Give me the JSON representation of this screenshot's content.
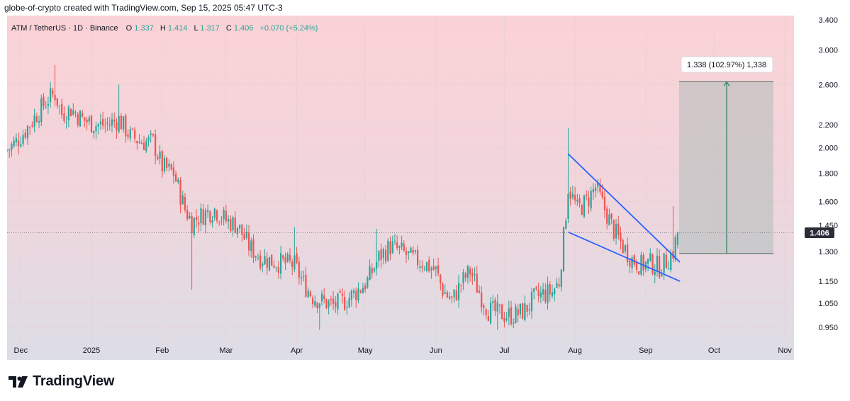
{
  "header": {
    "text": "globe-of-crypto created with TradingView.com, Sep 15, 2025 05:47 UTC-3"
  },
  "legend": {
    "symbol": "ATM / TetherUS · 1D · Binance",
    "o_label": "O",
    "o": "1.337",
    "h_label": "H",
    "h": "1.414",
    "l_label": "L",
    "l": "1.317",
    "c_label": "C",
    "c": "1.406",
    "change": "+0.070 (+5.24%)"
  },
  "measure": {
    "label": "1.338 (102.97%) 1,338",
    "from": 1.29,
    "to": 2.63
  },
  "price_tag": {
    "text": "1.406",
    "value": 1.406
  },
  "footer": {
    "brand": "TradingView"
  },
  "colors": {
    "up": "#26a69a",
    "down": "#ef5350",
    "trendline": "#2962ff",
    "tag": "#2a2e39"
  },
  "chart_data": {
    "type": "candlestick",
    "y_scale": "log",
    "ylim": [
      0.9,
      3.4
    ],
    "yticks": [
      "0.950",
      "1.050",
      "1.150",
      "1.300",
      "1.450",
      "1.600",
      "1.800",
      "2.000",
      "2.200",
      "2.600",
      "3.000",
      "3.400"
    ],
    "x_axis": {
      "start": "2024-11-25",
      "end": "2025-11-05"
    },
    "xticks": [
      {
        "label": "Dec",
        "date": "2024-12-01"
      },
      {
        "label": "2025",
        "date": "2025-01-01"
      },
      {
        "label": "Feb",
        "date": "2025-02-01"
      },
      {
        "label": "Mar",
        "date": "2025-03-01"
      },
      {
        "label": "Apr",
        "date": "2025-04-01"
      },
      {
        "label": "May",
        "date": "2025-05-01"
      },
      {
        "label": "Jun",
        "date": "2025-06-01"
      },
      {
        "label": "Jul",
        "date": "2025-07-01"
      },
      {
        "label": "Aug",
        "date": "2025-08-01"
      },
      {
        "label": "Sep",
        "date": "2025-09-01"
      },
      {
        "label": "Oct",
        "date": "2025-10-01"
      },
      {
        "label": "Nov",
        "date": "2025-11-01"
      }
    ],
    "close_path": [
      [
        "2024-11-25",
        1.98
      ],
      [
        "2024-11-29",
        2.05
      ],
      [
        "2024-12-03",
        2.15
      ],
      [
        "2024-12-08",
        2.3
      ],
      [
        "2024-12-13",
        2.45
      ],
      [
        "2024-12-16",
        2.5
      ],
      [
        "2024-12-19",
        2.3
      ],
      [
        "2024-12-23",
        2.35
      ],
      [
        "2024-12-28",
        2.25
      ],
      [
        "2025-01-03",
        2.2
      ],
      [
        "2025-01-08",
        2.2
      ],
      [
        "2025-01-13",
        2.25
      ],
      [
        "2025-01-18",
        2.1
      ],
      [
        "2025-01-23",
        2.05
      ],
      [
        "2025-01-28",
        2.05
      ],
      [
        "2025-02-01",
        1.85
      ],
      [
        "2025-02-06",
        1.8
      ],
      [
        "2025-02-11",
        1.55
      ],
      [
        "2025-02-14",
        1.47
      ],
      [
        "2025-02-19",
        1.52
      ],
      [
        "2025-02-24",
        1.55
      ],
      [
        "2025-03-01",
        1.48
      ],
      [
        "2025-03-06",
        1.45
      ],
      [
        "2025-03-11",
        1.33
      ],
      [
        "2025-03-16",
        1.27
      ],
      [
        "2025-03-21",
        1.25
      ],
      [
        "2025-03-26",
        1.24
      ],
      [
        "2025-03-31",
        1.23
      ],
      [
        "2025-04-04",
        1.14
      ],
      [
        "2025-04-08",
        1.08
      ],
      [
        "2025-04-12",
        1.06
      ],
      [
        "2025-04-17",
        1.04
      ],
      [
        "2025-04-22",
        1.06
      ],
      [
        "2025-04-27",
        1.1
      ],
      [
        "2025-05-02",
        1.15
      ],
      [
        "2025-05-07",
        1.27
      ],
      [
        "2025-05-12",
        1.33
      ],
      [
        "2025-05-17",
        1.3
      ],
      [
        "2025-05-22",
        1.26
      ],
      [
        "2025-05-27",
        1.24
      ],
      [
        "2025-06-01",
        1.2
      ],
      [
        "2025-06-04",
        1.11
      ],
      [
        "2025-06-08",
        1.06
      ],
      [
        "2025-06-12",
        1.14
      ],
      [
        "2025-06-16",
        1.2
      ],
      [
        "2025-06-20",
        1.1
      ],
      [
        "2025-06-24",
        1.02
      ],
      [
        "2025-06-28",
        1.01
      ],
      [
        "2025-07-02",
        1.0
      ],
      [
        "2025-07-06",
        1.0
      ],
      [
        "2025-07-10",
        1.02
      ],
      [
        "2025-07-14",
        1.07
      ],
      [
        "2025-07-18",
        1.09
      ],
      [
        "2025-07-22",
        1.1
      ],
      [
        "2025-07-25",
        1.15
      ],
      [
        "2025-07-27",
        1.38
      ],
      [
        "2025-07-29",
        1.7
      ],
      [
        "2025-08-02",
        1.55
      ],
      [
        "2025-08-06",
        1.6
      ],
      [
        "2025-08-10",
        1.7
      ],
      [
        "2025-08-14",
        1.55
      ],
      [
        "2025-08-18",
        1.42
      ],
      [
        "2025-08-22",
        1.33
      ],
      [
        "2025-08-26",
        1.26
      ],
      [
        "2025-08-30",
        1.23
      ],
      [
        "2025-09-03",
        1.24
      ],
      [
        "2025-09-07",
        1.22
      ],
      [
        "2025-09-10",
        1.25
      ],
      [
        "2025-09-13",
        1.3
      ],
      [
        "2025-09-15",
        1.406
      ]
    ],
    "spikes": [
      {
        "date": "2024-12-16",
        "high": 2.82
      },
      {
        "date": "2025-01-13",
        "high": 2.6
      },
      {
        "date": "2025-02-14",
        "low": 1.11
      },
      {
        "date": "2025-03-31",
        "high": 1.44
      },
      {
        "date": "2025-04-11",
        "low": 0.94
      },
      {
        "date": "2025-05-06",
        "high": 1.43
      },
      {
        "date": "2025-06-28",
        "low": 0.94
      },
      {
        "date": "2025-07-29",
        "high": 2.17
      },
      {
        "date": "2025-09-13",
        "high": 1.57
      }
    ],
    "trendlines": [
      {
        "from": [
          "2025-07-29",
          1.95
        ],
        "to": [
          "2025-09-16",
          1.245
        ]
      },
      {
        "from": [
          "2025-07-29",
          1.41
        ],
        "to": [
          "2025-09-16",
          1.15
        ]
      }
    ]
  }
}
